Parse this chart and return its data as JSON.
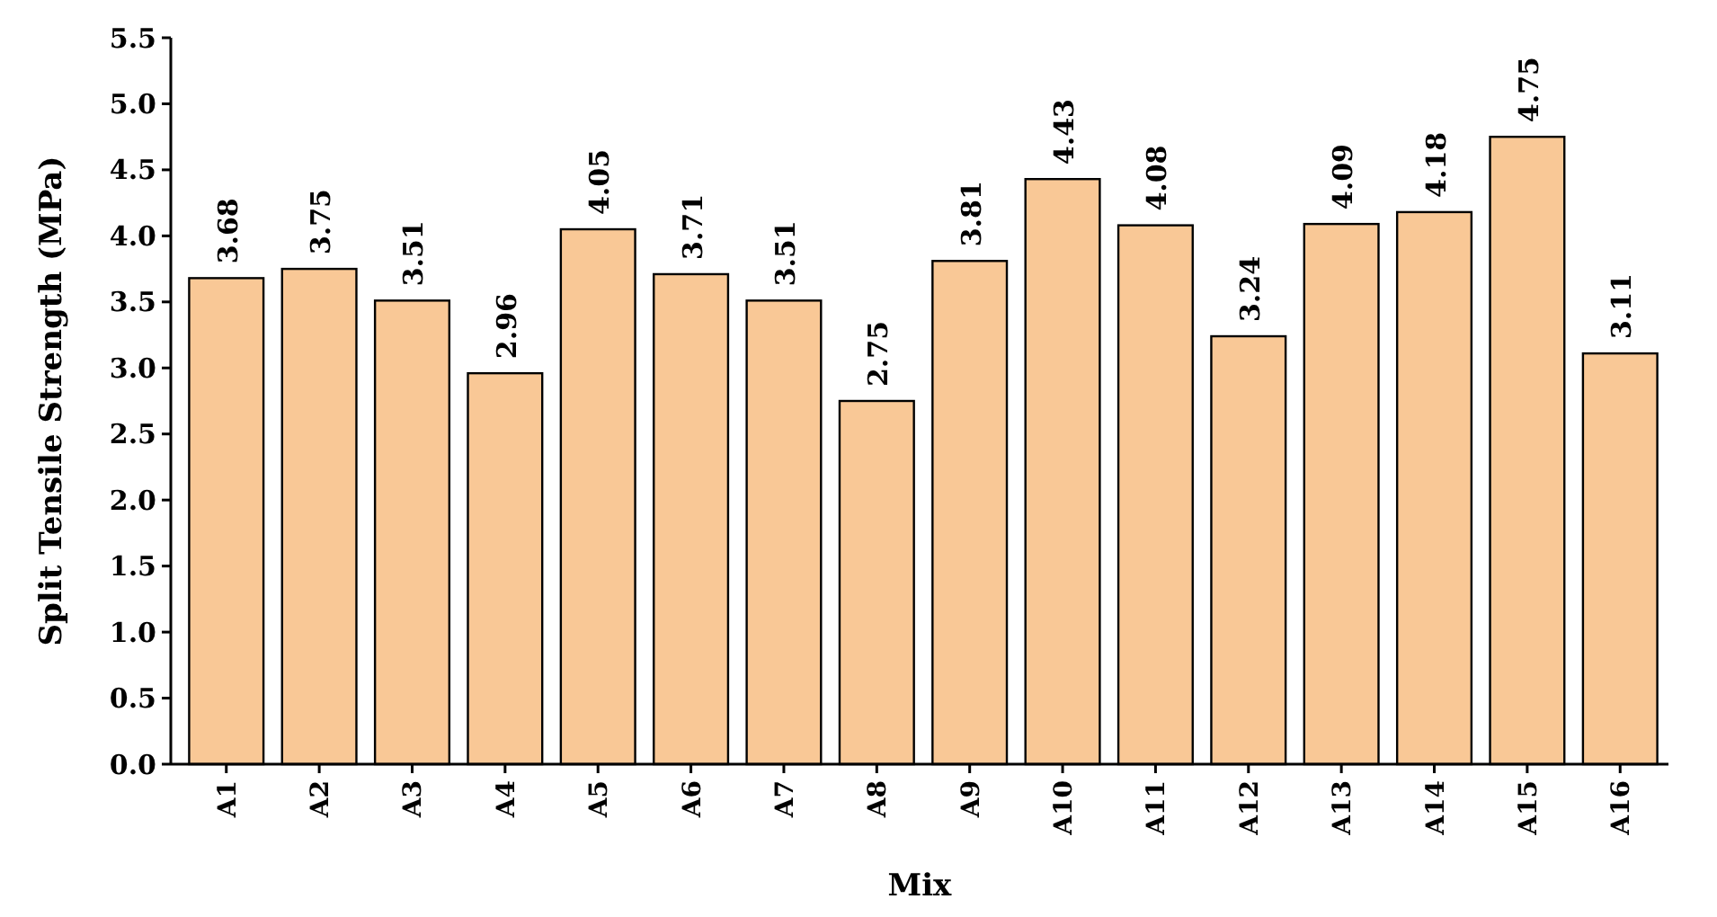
{
  "chart_data": {
    "type": "bar",
    "xlabel": "Mix",
    "ylabel": "Split Tensile Strength (MPa)",
    "categories": [
      "A1",
      "A2",
      "A3",
      "A4",
      "A5",
      "A6",
      "A7",
      "A8",
      "A9",
      "A10",
      "A11",
      "A12",
      "A13",
      "A14",
      "A15",
      "A16"
    ],
    "values": [
      3.68,
      3.75,
      3.51,
      2.96,
      4.05,
      3.71,
      3.51,
      2.75,
      3.81,
      4.43,
      4.08,
      3.24,
      4.09,
      4.18,
      4.75,
      3.11
    ],
    "color": "#f9c896",
    "ylim": [
      0,
      5.5
    ],
    "yticks": [
      {
        "value": 0,
        "label": "0.0"
      },
      {
        "value": 0.5,
        "label": "0.5"
      },
      {
        "value": 1,
        "label": "1.0"
      },
      {
        "value": 1.5,
        "label": "1.5"
      },
      {
        "value": 2,
        "label": "2.0"
      },
      {
        "value": 2.5,
        "label": "2.5"
      },
      {
        "value": 3,
        "label": "3.0"
      },
      {
        "value": 3.5,
        "label": "3.5"
      },
      {
        "value": 4,
        "label": "4.0"
      },
      {
        "value": 4.5,
        "label": "4.5"
      },
      {
        "value": 5,
        "label": "5.0"
      },
      {
        "value": 5.5,
        "label": "5.5"
      }
    ],
    "data_labels": true,
    "grid": false
  }
}
